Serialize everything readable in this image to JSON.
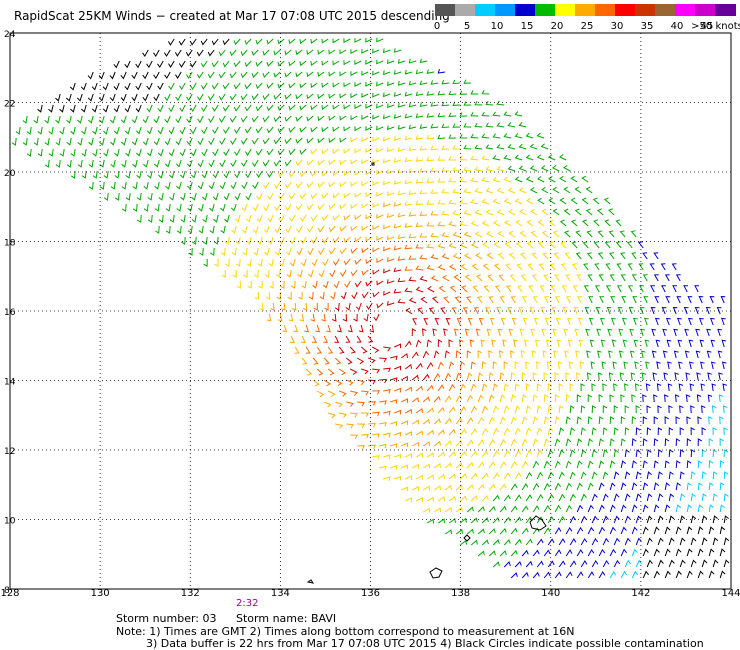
{
  "title": "RapidScat 25KM Winds − created at Mar 17 07:08 UTC 2015 descending",
  "scale": {
    "labels": [
      "0",
      "5",
      "10",
      "15",
      "20",
      "25",
      "30",
      "35",
      "40",
      "45",
      ">50 knots"
    ],
    "colors": [
      "#555555",
      "#aaaaaa",
      "#00ccff",
      "#0099ff",
      "#0000cc",
      "#00bb00",
      "#ffff00",
      "#ffaa00",
      "#ff6600",
      "#ff0000",
      "#cc3300",
      "#996633",
      "#ff00ff",
      "#cc00cc",
      "#660099"
    ]
  },
  "map": {
    "lon_ticks": [
      "128",
      "130",
      "132",
      "134",
      "136",
      "138",
      "140",
      "142",
      "144"
    ],
    "lat_ticks": [
      "8",
      "10",
      "12",
      "14",
      "16",
      "18",
      "20",
      "22",
      "24"
    ],
    "lon_range": [
      128,
      144
    ],
    "lat_range": [
      8,
      24
    ],
    "time_label": "2:32",
    "time_label_color": "#990099",
    "storm_center": {
      "lon": 136.5,
      "lat": 15.5
    }
  },
  "footer": {
    "storm_number": "Storm number: 03",
    "storm_name": "Storm name: BAVI",
    "note1": "Note: 1) Times are GMT  2) Times along bottom correspond to measurement at 16N",
    "note2": "3) Data buffer is 22 hrs from Mar 17 07:08 UTC 2015  4) Black Circles indicate possible contamination"
  }
}
